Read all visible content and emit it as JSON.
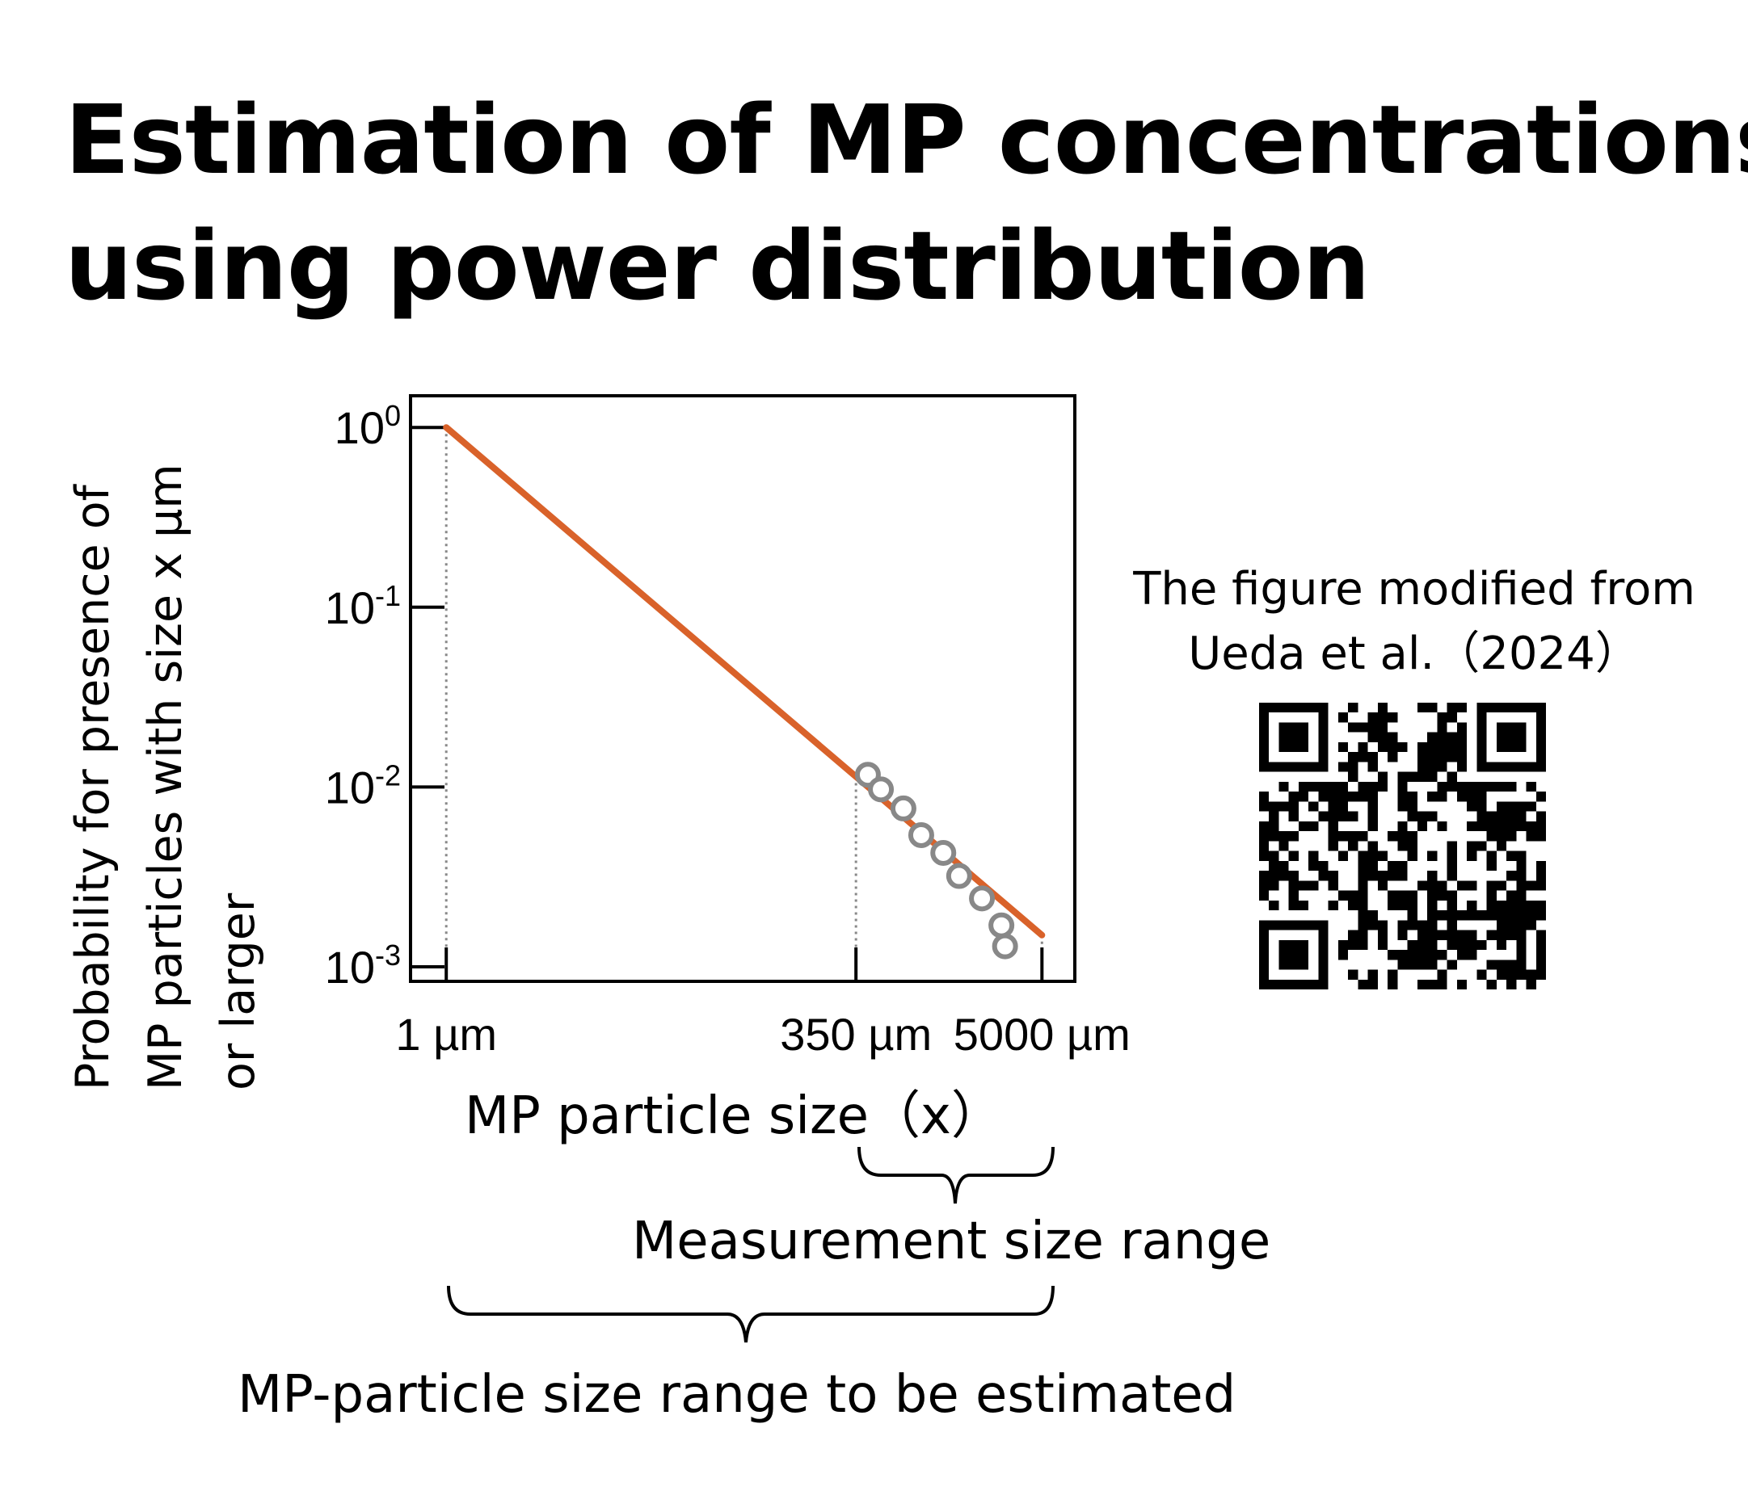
{
  "title": {
    "line1": "Estimation of MP concentrations",
    "line2": "using power distribution"
  },
  "ylabel": {
    "line1": "Probability for presence of",
    "line2": "MP particles with size x µm",
    "line3": "or larger"
  },
  "xlabel": "MP particle size（x）",
  "source": {
    "line1": "The figure modified from",
    "line2": "Ueda et al.（2024）",
    "qr_icon": "qr-code-icon"
  },
  "braces": {
    "measurement_label": "Measurement size range",
    "estimated_label": "MP-particle size range to be estimated"
  },
  "colors": {
    "fit_line": "#d9622a",
    "points": "#888888",
    "guides": "#888888"
  },
  "chart_data": {
    "type": "line",
    "scale": "log-log",
    "xlabel": "MP particle size（x）",
    "ylabel": "Probability for presence of MP particles with size x µm or larger",
    "x_ticks": [
      {
        "value": 1,
        "label": "1 µm"
      },
      {
        "value": 350,
        "label": "350 µm"
      },
      {
        "value": 5000,
        "label": "5000 µm"
      }
    ],
    "y_ticks": [
      {
        "value": 1,
        "base": "10",
        "exp": "0"
      },
      {
        "value": 0.1,
        "base": "10",
        "exp": "-1"
      },
      {
        "value": 0.01,
        "base": "10",
        "exp": "-2"
      },
      {
        "value": 0.001,
        "base": "10",
        "exp": "-3"
      }
    ],
    "xlim": [
      0.6,
      8000
    ],
    "ylim": [
      0.00083,
      1.5
    ],
    "series": [
      {
        "kind": "fit-line",
        "x": [
          1,
          5000
        ],
        "y": [
          1.0,
          0.0015
        ]
      },
      {
        "kind": "observed-points",
        "x": [
          415,
          500,
          690,
          890,
          1220,
          1530,
          2120,
          2800,
          2950
        ],
        "y": [
          0.0117,
          0.0097,
          0.0076,
          0.0054,
          0.0043,
          0.0032,
          0.0024,
          0.0017,
          0.0013
        ]
      }
    ],
    "guides_at_x": [
      1,
      350,
      5000
    ],
    "grid": false,
    "legend": "none"
  }
}
